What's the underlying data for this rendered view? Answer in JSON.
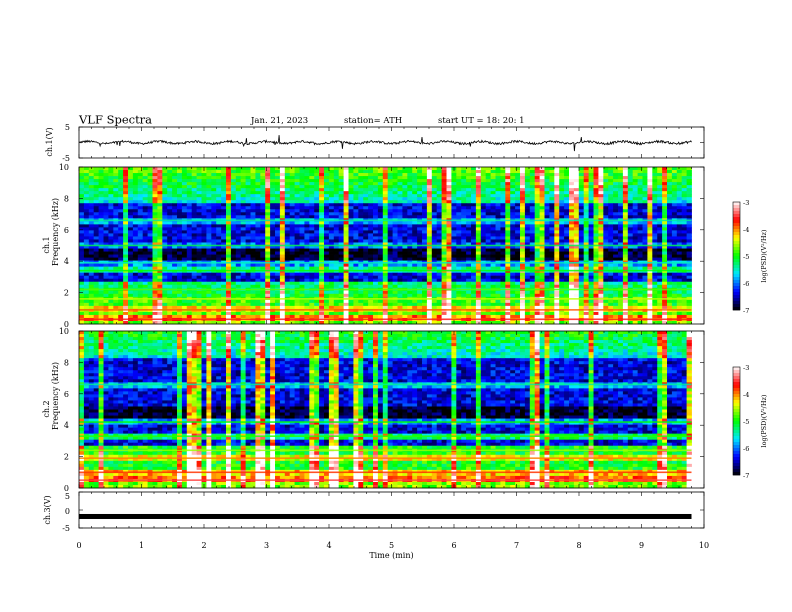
{
  "header": {
    "title": "VLF  Spectra",
    "date": "Jan. 21, 2023",
    "station": "station= ATH",
    "start": "start  UT  =   18: 20: 1"
  },
  "colors": {
    "axis": "#000000",
    "trace": "#000000",
    "cmap": [
      "#000000",
      "#0000ff",
      "#00e8ff",
      "#00ff00",
      "#ffff00",
      "#ff0000",
      "#ffffff"
    ]
  },
  "chart_data": [
    {
      "type": "line",
      "panel": "ch1-waveform",
      "ylabel": "ch.1(V)",
      "ylim": [
        -5,
        5
      ],
      "yticks": [
        "5",
        "-5"
      ],
      "xlim": [
        0,
        10
      ],
      "x_extent": [
        0,
        9.8
      ],
      "approx_level": 0,
      "approx_amplitude": 0.7
    },
    {
      "type": "heatmap",
      "panel": "ch1-spectrogram",
      "ylabel_channel": "ch.1",
      "ylabel": "Frequency  (kHz)",
      "ylim": [
        0,
        10
      ],
      "yticks": [
        "0",
        "2",
        "4",
        "6",
        "8",
        "10"
      ],
      "xlim": [
        0,
        10
      ],
      "x_extent": [
        0,
        9.8
      ],
      "colorbar": {
        "label": "log(PSD)(V²/Hz)",
        "range": [
          -7,
          -3
        ],
        "ticks": [
          "-3",
          "-4",
          "-5",
          "-6",
          "-7"
        ]
      },
      "bands": [
        {
          "f": 0.3,
          "level": -3.6
        },
        {
          "f": 0.9,
          "level": -3.9
        },
        {
          "f": 1.6,
          "level": -4.5
        },
        {
          "f": 2.2,
          "level": -4.8
        },
        {
          "f": 3.4,
          "level": -5.0
        },
        {
          "f": 3.9,
          "level": -5.5
        },
        {
          "f": 5.0,
          "level": -5.2
        },
        {
          "f": 6.6,
          "level": -5.4
        }
      ],
      "features": "broadband sferics (vertical streaks) throughout; strongest energy 0-2.5 kHz and 8-10 kHz"
    },
    {
      "type": "heatmap",
      "panel": "ch2-spectrogram",
      "ylabel_channel": "ch.2",
      "ylabel": "Frequency  (kHz)",
      "ylim": [
        0,
        10
      ],
      "yticks": [
        "0",
        "2",
        "4",
        "6",
        "8",
        "10"
      ],
      "xlim": [
        0,
        10
      ],
      "x_extent": [
        0,
        9.8
      ],
      "colorbar": {
        "label": "log(PSD)(V²/Hz)",
        "range": [
          -7,
          -3
        ],
        "ticks": [
          "-3",
          "-4",
          "-5",
          "-6",
          "-7"
        ]
      },
      "bands": [
        {
          "f": 0.5,
          "level": -3.5
        },
        {
          "f": 1.0,
          "level": -3.8
        },
        {
          "f": 1.9,
          "level": -4.0
        },
        {
          "f": 2.4,
          "level": -4.6
        },
        {
          "f": 3.3,
          "level": -4.9
        },
        {
          "f": 4.2,
          "level": -5.0
        },
        {
          "f": 6.6,
          "level": -5.4
        }
      ],
      "features": "broadband sferics (vertical streaks) throughout; strongest energy 0-2.5 kHz"
    },
    {
      "type": "line",
      "panel": "ch3-waveform",
      "ylabel": "ch.3(V)",
      "ylim": [
        -5,
        5
      ],
      "yticks": [
        "5",
        "0",
        "-5"
      ],
      "xlabel": "Time  (min)",
      "xlim": [
        0,
        10
      ],
      "xticks": [
        "0",
        "1",
        "2",
        "3",
        "4",
        "5",
        "6",
        "7",
        "8",
        "9",
        "10"
      ],
      "x_extent": [
        0,
        9.8
      ],
      "approx_level": -1.8
    }
  ]
}
